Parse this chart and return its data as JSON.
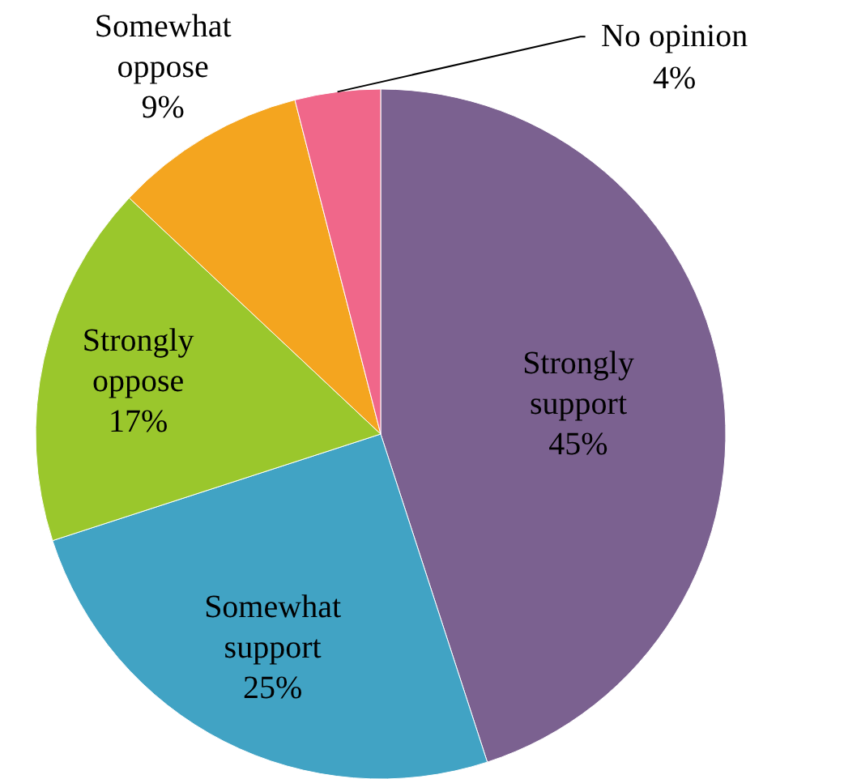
{
  "chart_data": {
    "type": "pie",
    "categories": [
      "Strongly support",
      "Somewhat support",
      "Strongly oppose",
      "Somewhat oppose",
      "No opinion"
    ],
    "values": [
      45,
      25,
      17,
      9,
      4
    ],
    "colors": [
      "#7b6190",
      "#41a3c4",
      "#9ac72c",
      "#f4a51f",
      "#f0678a"
    ],
    "value_labels": [
      "45%",
      "25%",
      "17%",
      "9%",
      "4%"
    ]
  }
}
